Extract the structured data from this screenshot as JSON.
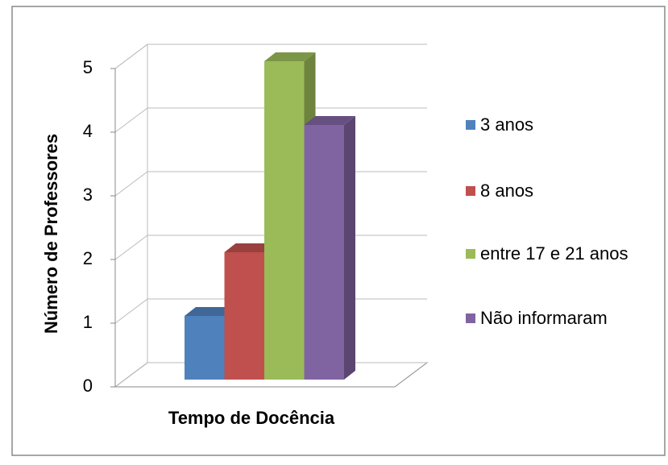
{
  "chart_data": {
    "type": "bar3d",
    "x_label": "Tempo de Docência",
    "y_label": "Número de Professores",
    "series": [
      {
        "name": "3 anos",
        "color": "#4f81bd",
        "values": [
          1
        ]
      },
      {
        "name": "8 anos",
        "color": "#c0504d",
        "values": [
          2
        ]
      },
      {
        "name": "entre 17 e 21 anos",
        "color": "#9bbb59",
        "values": [
          5
        ]
      },
      {
        "name": "Não informaram",
        "color": "#8064a2",
        "values": [
          4
        ]
      }
    ],
    "ylim": [
      0,
      5
    ],
    "yticks": [
      0,
      1,
      2,
      3,
      4,
      5
    ],
    "grid": true,
    "legend": "right"
  }
}
